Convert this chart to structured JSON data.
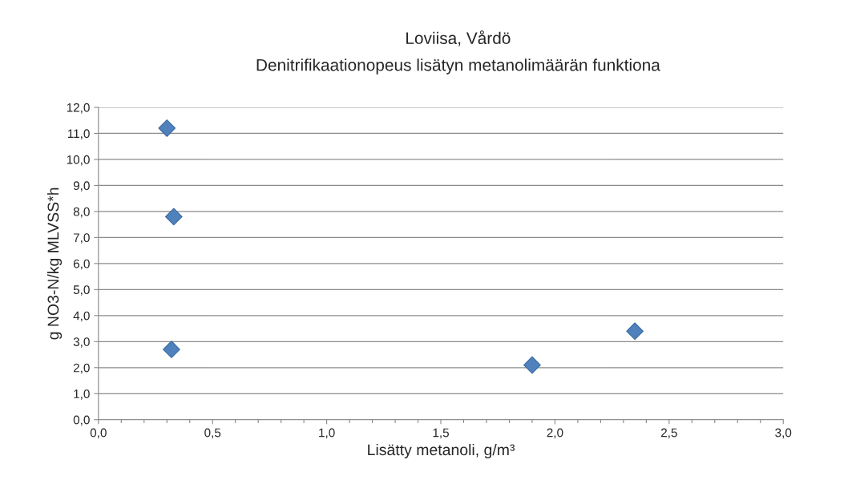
{
  "chart_data": {
    "type": "scatter",
    "title": "Loviisa, Vårdö",
    "subtitle": "Denitrifikaationopeus lisätyn metanolimäärän funktiona",
    "xlabel": "Lisätty metanoli, g/m³",
    "ylabel": "g NO3-N/kg MLVSS*h",
    "x": [
      0.3,
      0.33,
      0.32,
      1.9,
      2.35
    ],
    "series": [
      {
        "color": "#4f81bd",
        "values": [
          11.2,
          7.8,
          2.7,
          2.1,
          3.4
        ]
      }
    ],
    "marker": "diamond",
    "grid": "y",
    "xlim": [
      0,
      3
    ],
    "ylim": [
      0,
      12
    ],
    "xticks": [
      {
        "value": 0,
        "label": "0,0"
      },
      {
        "value": 0.1,
        "label": null
      },
      {
        "value": 0.2,
        "label": null
      },
      {
        "value": 0.3,
        "label": null
      },
      {
        "value": 0.4,
        "label": null
      },
      {
        "value": 0.5,
        "label": "0,5"
      },
      {
        "value": 0.6,
        "label": null
      },
      {
        "value": 0.7,
        "label": null
      },
      {
        "value": 0.8,
        "label": null
      },
      {
        "value": 0.9,
        "label": null
      },
      {
        "value": 1.0,
        "label": "1,0"
      },
      {
        "value": 1.1,
        "label": null
      },
      {
        "value": 1.2,
        "label": null
      },
      {
        "value": 1.3,
        "label": null
      },
      {
        "value": 1.4,
        "label": null
      },
      {
        "value": 1.5,
        "label": "1,5"
      },
      {
        "value": 1.6,
        "label": null
      },
      {
        "value": 1.7,
        "label": null
      },
      {
        "value": 1.8,
        "label": null
      },
      {
        "value": 1.9,
        "label": null
      },
      {
        "value": 2.0,
        "label": "2,0"
      },
      {
        "value": 2.1,
        "label": null
      },
      {
        "value": 2.2,
        "label": null
      },
      {
        "value": 2.3,
        "label": null
      },
      {
        "value": 2.4,
        "label": null
      },
      {
        "value": 2.5,
        "label": "2,5"
      },
      {
        "value": 2.6,
        "label": null
      },
      {
        "value": 2.7,
        "label": null
      },
      {
        "value": 2.8,
        "label": null
      },
      {
        "value": 2.9,
        "label": null
      },
      {
        "value": 3.0,
        "label": "3,0"
      }
    ],
    "yticks": [
      {
        "value": 0,
        "label": "0,0"
      },
      {
        "value": 1,
        "label": "1,0"
      },
      {
        "value": 2,
        "label": "2,0"
      },
      {
        "value": 3,
        "label": "3,0"
      },
      {
        "value": 4,
        "label": "4,0"
      },
      {
        "value": 5,
        "label": "5,0"
      },
      {
        "value": 6,
        "label": "6,0"
      },
      {
        "value": 7,
        "label": "7,0"
      },
      {
        "value": 8,
        "label": "8,0"
      },
      {
        "value": 9,
        "label": "9,0"
      },
      {
        "value": 10,
        "label": "10,0"
      },
      {
        "value": 11,
        "label": "11,0"
      },
      {
        "value": 12,
        "label": "12,0"
      }
    ]
  }
}
